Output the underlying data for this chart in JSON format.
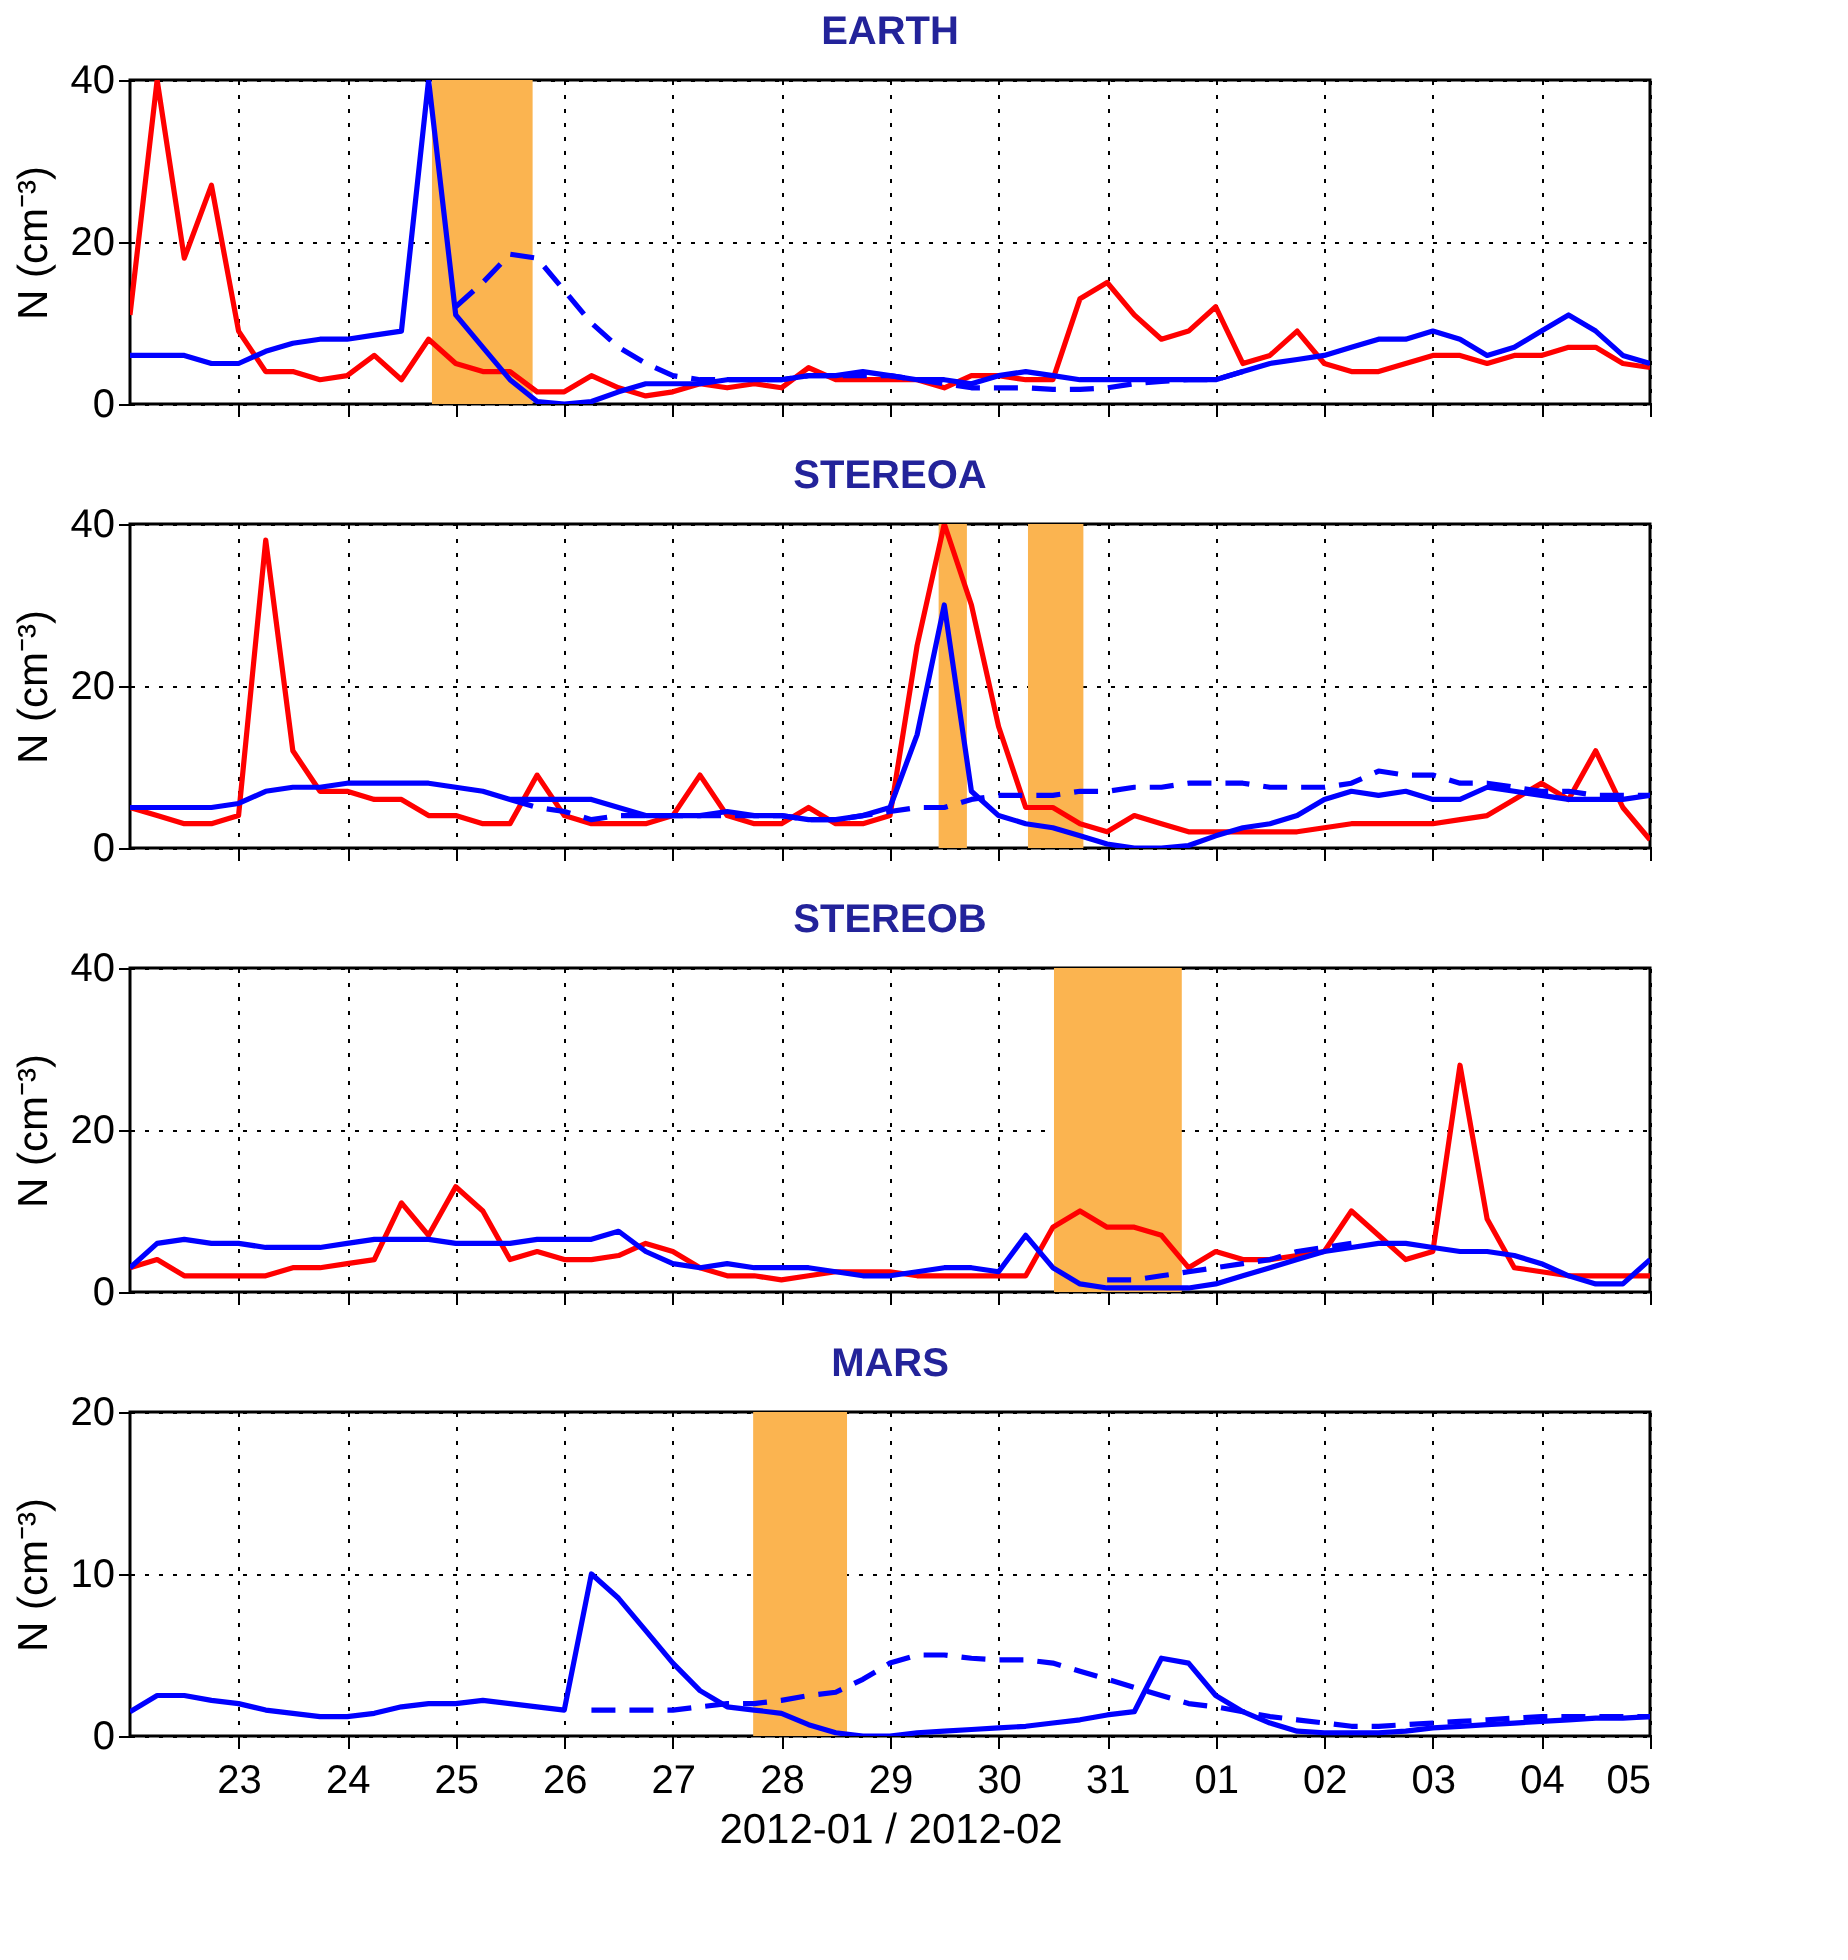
{
  "chart_data": [
    {
      "type": "line",
      "title": "EARTH",
      "ylabel": "N (cm⁻³)",
      "tick_labels": "y",
      "grid": true,
      "xlim": [
        "2012-01-22T00:00",
        "2012-02-05T00:00"
      ],
      "ylim": [
        0,
        40
      ],
      "yticks": [
        0,
        20,
        40
      ],
      "xticks": [
        {
          "value": "2012-01-23T00:00",
          "label": null
        },
        {
          "value": "2012-01-24T00:00",
          "label": null
        },
        {
          "value": "2012-01-25T00:00",
          "label": null
        },
        {
          "value": "2012-01-26T00:00",
          "label": null
        },
        {
          "value": "2012-01-27T00:00",
          "label": null
        },
        {
          "value": "2012-01-28T00:00",
          "label": null
        },
        {
          "value": "2012-01-29T00:00",
          "label": null
        },
        {
          "value": "2012-01-30T00:00",
          "label": null
        },
        {
          "value": "2012-01-31T00:00",
          "label": null
        },
        {
          "value": "2012-02-01T00:00",
          "label": null
        },
        {
          "value": "2012-02-02T00:00",
          "label": null
        },
        {
          "value": "2012-02-03T00:00",
          "label": null
        },
        {
          "value": "2012-02-04T00:00",
          "label": null
        },
        {
          "value": "2012-02-05T00:00",
          "label": null
        }
      ],
      "x": [
        "2012-01-22T00:00",
        "2012-01-22T06:00",
        "2012-01-22T12:00",
        "2012-01-22T18:00",
        "2012-01-23T00:00",
        "2012-01-23T06:00",
        "2012-01-23T12:00",
        "2012-01-23T18:00",
        "2012-01-24T00:00",
        "2012-01-24T06:00",
        "2012-01-24T12:00",
        "2012-01-24T18:00",
        "2012-01-25T00:00",
        "2012-01-25T06:00",
        "2012-01-25T12:00",
        "2012-01-25T18:00",
        "2012-01-26T00:00",
        "2012-01-26T06:00",
        "2012-01-26T12:00",
        "2012-01-26T18:00",
        "2012-01-27T00:00",
        "2012-01-27T06:00",
        "2012-01-27T12:00",
        "2012-01-27T18:00",
        "2012-01-28T00:00",
        "2012-01-28T06:00",
        "2012-01-28T12:00",
        "2012-01-28T18:00",
        "2012-01-29T00:00",
        "2012-01-29T06:00",
        "2012-01-29T12:00",
        "2012-01-29T18:00",
        "2012-01-30T00:00",
        "2012-01-30T06:00",
        "2012-01-30T12:00",
        "2012-01-30T18:00",
        "2012-01-31T00:00",
        "2012-01-31T06:00",
        "2012-01-31T12:00",
        "2012-01-31T18:00",
        "2012-02-01T00:00",
        "2012-02-01T06:00",
        "2012-02-01T12:00",
        "2012-02-01T18:00",
        "2012-02-02T00:00",
        "2012-02-02T06:00",
        "2012-02-02T12:00",
        "2012-02-02T18:00",
        "2012-02-03T00:00",
        "2012-02-03T06:00",
        "2012-02-03T12:00",
        "2012-02-03T18:00",
        "2012-02-04T00:00",
        "2012-02-04T06:00",
        "2012-02-04T12:00",
        "2012-02-04T18:00",
        "2012-02-05T00:00"
      ],
      "bands": [
        {
          "axis": "x",
          "from": "2012-01-24T18:45",
          "to": "2012-01-25T17:00",
          "color": "#fbb450"
        }
      ],
      "series": [
        {
          "color": "#ff0000",
          "line_style": "solid",
          "values": [
            11,
            40,
            18,
            27,
            9,
            4,
            4,
            3,
            3.5,
            6,
            3,
            8,
            5,
            4,
            4,
            1.5,
            1.5,
            3.5,
            2,
            1,
            1.5,
            2.5,
            2,
            2.5,
            2,
            4.5,
            3,
            3,
            3,
            3,
            2,
            3.5,
            3.5,
            3,
            3,
            13,
            15,
            11,
            8,
            9,
            12,
            5,
            6,
            9,
            5,
            4,
            4,
            5,
            6,
            6,
            5,
            6,
            6,
            7,
            7,
            5,
            4.5
          ]
        },
        {
          "color": "#0000ff",
          "line_style": "solid",
          "values": [
            6,
            6,
            6,
            5,
            5,
            6.5,
            7.5,
            8,
            8,
            8.5,
            9,
            40,
            11,
            7,
            3,
            0.3,
            0,
            0.3,
            1.5,
            2.5,
            2.5,
            2.5,
            3,
            3,
            3,
            3.5,
            3.5,
            4,
            3.5,
            3,
            3,
            2.5,
            3.5,
            4,
            3.5,
            3,
            3,
            3,
            3,
            3,
            3,
            4,
            5,
            5.5,
            6,
            7,
            8,
            8,
            9,
            8,
            6,
            7,
            9,
            11,
            9,
            6,
            5
          ]
        },
        {
          "color": "#0000ff",
          "line_style": "dashed",
          "values": [
            null,
            null,
            null,
            null,
            null,
            null,
            null,
            null,
            null,
            null,
            null,
            null,
            12,
            15,
            18.5,
            18,
            14,
            10,
            7,
            5,
            3.5,
            3,
            3,
            3,
            3,
            3.5,
            3.5,
            3.5,
            3.5,
            3,
            2.5,
            2,
            2,
            2,
            1.8,
            1.8,
            2,
            2.5,
            2.8,
            3,
            3,
            4,
            null,
            null,
            null,
            null,
            null,
            null,
            null,
            null,
            null,
            null,
            null,
            null,
            null,
            null,
            null
          ]
        }
      ]
    },
    {
      "type": "line",
      "title": "STEREOA",
      "ylabel": "N (cm⁻³)",
      "tick_labels": "y",
      "grid": true,
      "xlim": [
        "2012-01-22T00:00",
        "2012-02-05T00:00"
      ],
      "ylim": [
        0,
        40
      ],
      "yticks": [
        0,
        20,
        40
      ],
      "xticks": [
        {
          "value": "2012-01-23T00:00",
          "label": null
        },
        {
          "value": "2012-01-24T00:00",
          "label": null
        },
        {
          "value": "2012-01-25T00:00",
          "label": null
        },
        {
          "value": "2012-01-26T00:00",
          "label": null
        },
        {
          "value": "2012-01-27T00:00",
          "label": null
        },
        {
          "value": "2012-01-28T00:00",
          "label": null
        },
        {
          "value": "2012-01-29T00:00",
          "label": null
        },
        {
          "value": "2012-01-30T00:00",
          "label": null
        },
        {
          "value": "2012-01-31T00:00",
          "label": null
        },
        {
          "value": "2012-02-01T00:00",
          "label": null
        },
        {
          "value": "2012-02-02T00:00",
          "label": null
        },
        {
          "value": "2012-02-03T00:00",
          "label": null
        },
        {
          "value": "2012-02-04T00:00",
          "label": null
        },
        {
          "value": "2012-02-05T00:00",
          "label": null
        }
      ],
      "x": [
        "2012-01-22T00:00",
        "2012-01-22T06:00",
        "2012-01-22T12:00",
        "2012-01-22T18:00",
        "2012-01-23T00:00",
        "2012-01-23T06:00",
        "2012-01-23T12:00",
        "2012-01-23T18:00",
        "2012-01-24T00:00",
        "2012-01-24T06:00",
        "2012-01-24T12:00",
        "2012-01-24T18:00",
        "2012-01-25T00:00",
        "2012-01-25T06:00",
        "2012-01-25T12:00",
        "2012-01-25T18:00",
        "2012-01-26T00:00",
        "2012-01-26T06:00",
        "2012-01-26T12:00",
        "2012-01-26T18:00",
        "2012-01-27T00:00",
        "2012-01-27T06:00",
        "2012-01-27T12:00",
        "2012-01-27T18:00",
        "2012-01-28T00:00",
        "2012-01-28T06:00",
        "2012-01-28T12:00",
        "2012-01-28T18:00",
        "2012-01-29T00:00",
        "2012-01-29T06:00",
        "2012-01-29T12:00",
        "2012-01-29T18:00",
        "2012-01-30T00:00",
        "2012-01-30T06:00",
        "2012-01-30T12:00",
        "2012-01-30T18:00",
        "2012-01-31T00:00",
        "2012-01-31T06:00",
        "2012-01-31T12:00",
        "2012-01-31T18:00",
        "2012-02-01T00:00",
        "2012-02-01T06:00",
        "2012-02-01T12:00",
        "2012-02-01T18:00",
        "2012-02-02T00:00",
        "2012-02-02T06:00",
        "2012-02-02T12:00",
        "2012-02-02T18:00",
        "2012-02-03T00:00",
        "2012-02-03T06:00",
        "2012-02-03T12:00",
        "2012-02-03T18:00",
        "2012-02-04T00:00",
        "2012-02-04T06:00",
        "2012-02-04T12:00",
        "2012-02-04T18:00",
        "2012-02-05T00:00"
      ],
      "bands": [
        {
          "axis": "x",
          "from": "2012-01-29T10:45",
          "to": "2012-01-29T17:00",
          "color": "#fbb450"
        },
        {
          "axis": "x",
          "from": "2012-01-30T06:30",
          "to": "2012-01-30T18:45",
          "color": "#fbb450"
        }
      ],
      "series": [
        {
          "color": "#ff0000",
          "line_style": "solid",
          "values": [
            5,
            4,
            3,
            3,
            4,
            38,
            12,
            7,
            7,
            6,
            6,
            4,
            4,
            3,
            3,
            9,
            4,
            3,
            3,
            3,
            4,
            9,
            4,
            3,
            3,
            5,
            3,
            3,
            4,
            25,
            40,
            30,
            15,
            5,
            5,
            3,
            2,
            4,
            3,
            2,
            2,
            2,
            2,
            2,
            2.5,
            3,
            3,
            3,
            3,
            3.5,
            4,
            6,
            8,
            6,
            12,
            5,
            1
          ]
        },
        {
          "color": "#0000ff",
          "line_style": "solid",
          "values": [
            5,
            5,
            5,
            5,
            5.5,
            7,
            7.5,
            7.5,
            8,
            8,
            8,
            8,
            7.5,
            7,
            6,
            6,
            6,
            6,
            5,
            4,
            4,
            4,
            4.5,
            4,
            4,
            3.5,
            3.5,
            4,
            5,
            14,
            30,
            7,
            4,
            3,
            2.5,
            1.5,
            0.5,
            0,
            0,
            0.3,
            1.5,
            2.5,
            3,
            4,
            6,
            7,
            6.5,
            7,
            6,
            6,
            7.5,
            7,
            6.5,
            6,
            6,
            6,
            6.5
          ]
        },
        {
          "color": "#0000ff",
          "line_style": "dashed",
          "values": [
            null,
            null,
            null,
            null,
            null,
            null,
            null,
            null,
            null,
            null,
            null,
            null,
            null,
            null,
            6,
            5,
            4.5,
            3.5,
            4,
            4,
            4,
            4,
            4,
            4,
            4,
            3.5,
            3.5,
            4,
            4.5,
            5,
            5,
            6,
            6.5,
            6.5,
            6.5,
            7,
            7,
            7.5,
            7.5,
            8,
            8,
            8,
            7.5,
            7.5,
            7.5,
            8,
            9.5,
            9,
            9,
            8,
            8,
            7.5,
            7,
            7,
            6.5,
            6.5,
            6.5
          ]
        }
      ]
    },
    {
      "type": "line",
      "title": "STEREOB",
      "ylabel": "N (cm⁻³)",
      "tick_labels": "y",
      "grid": true,
      "xlim": [
        "2012-01-22T00:00",
        "2012-02-05T00:00"
      ],
      "ylim": [
        0,
        40
      ],
      "yticks": [
        0,
        20,
        40
      ],
      "xticks": [
        {
          "value": "2012-01-23T00:00",
          "label": null
        },
        {
          "value": "2012-01-24T00:00",
          "label": null
        },
        {
          "value": "2012-01-25T00:00",
          "label": null
        },
        {
          "value": "2012-01-26T00:00",
          "label": null
        },
        {
          "value": "2012-01-27T00:00",
          "label": null
        },
        {
          "value": "2012-01-28T00:00",
          "label": null
        },
        {
          "value": "2012-01-29T00:00",
          "label": null
        },
        {
          "value": "2012-01-30T00:00",
          "label": null
        },
        {
          "value": "2012-01-31T00:00",
          "label": null
        },
        {
          "value": "2012-02-01T00:00",
          "label": null
        },
        {
          "value": "2012-02-02T00:00",
          "label": null
        },
        {
          "value": "2012-02-03T00:00",
          "label": null
        },
        {
          "value": "2012-02-04T00:00",
          "label": null
        },
        {
          "value": "2012-02-05T00:00",
          "label": null
        }
      ],
      "x": [
        "2012-01-22T00:00",
        "2012-01-22T06:00",
        "2012-01-22T12:00",
        "2012-01-22T18:00",
        "2012-01-23T00:00",
        "2012-01-23T06:00",
        "2012-01-23T12:00",
        "2012-01-23T18:00",
        "2012-01-24T00:00",
        "2012-01-24T06:00",
        "2012-01-24T12:00",
        "2012-01-24T18:00",
        "2012-01-25T00:00",
        "2012-01-25T06:00",
        "2012-01-25T12:00",
        "2012-01-25T18:00",
        "2012-01-26T00:00",
        "2012-01-26T06:00",
        "2012-01-26T12:00",
        "2012-01-26T18:00",
        "2012-01-27T00:00",
        "2012-01-27T06:00",
        "2012-01-27T12:00",
        "2012-01-27T18:00",
        "2012-01-28T00:00",
        "2012-01-28T06:00",
        "2012-01-28T12:00",
        "2012-01-28T18:00",
        "2012-01-29T00:00",
        "2012-01-29T06:00",
        "2012-01-29T12:00",
        "2012-01-29T18:00",
        "2012-01-30T00:00",
        "2012-01-30T06:00",
        "2012-01-30T12:00",
        "2012-01-30T18:00",
        "2012-01-31T00:00",
        "2012-01-31T06:00",
        "2012-01-31T12:00",
        "2012-01-31T18:00",
        "2012-02-01T00:00",
        "2012-02-01T06:00",
        "2012-02-01T12:00",
        "2012-02-01T18:00",
        "2012-02-02T00:00",
        "2012-02-02T06:00",
        "2012-02-02T12:00",
        "2012-02-02T18:00",
        "2012-02-03T00:00",
        "2012-02-03T06:00",
        "2012-02-03T12:00",
        "2012-02-03T18:00",
        "2012-02-04T00:00",
        "2012-02-04T06:00",
        "2012-02-04T12:00",
        "2012-02-04T18:00",
        "2012-02-05T00:00"
      ],
      "bands": [
        {
          "axis": "x",
          "from": "2012-01-30T12:15",
          "to": "2012-01-31T16:30",
          "color": "#fbb450"
        }
      ],
      "series": [
        {
          "color": "#ff0000",
          "line_style": "solid",
          "values": [
            3,
            4,
            2,
            2,
            2,
            2,
            3,
            3,
            3.5,
            4,
            11,
            7,
            13,
            10,
            4,
            5,
            4,
            4,
            4.5,
            6,
            5,
            3,
            2,
            2,
            1.5,
            2,
            2.5,
            2.5,
            2.5,
            2,
            2,
            2,
            2,
            2,
            8,
            10,
            8,
            8,
            7,
            3,
            5,
            4,
            4,
            4.5,
            5,
            10,
            7,
            4,
            5,
            28,
            9,
            3,
            2.5,
            2,
            2,
            2,
            2
          ]
        },
        {
          "color": "#0000ff",
          "line_style": "solid",
          "values": [
            3,
            6,
            6.5,
            6,
            6,
            5.5,
            5.5,
            5.5,
            6,
            6.5,
            6.5,
            6.5,
            6,
            6,
            6,
            6.5,
            6.5,
            6.5,
            7.5,
            5,
            3.5,
            3,
            3.5,
            3,
            3,
            3,
            2.5,
            2,
            2,
            2.5,
            3,
            3,
            2.5,
            7,
            3,
            1,
            0.5,
            0.5,
            0.5,
            0.5,
            1,
            2,
            3,
            4,
            5,
            5.5,
            6,
            6,
            5.5,
            5,
            5,
            4.5,
            3.5,
            2,
            1,
            1,
            4
          ]
        },
        {
          "color": "#0000ff",
          "line_style": "dashed",
          "values": [
            null,
            null,
            null,
            null,
            null,
            null,
            null,
            null,
            null,
            null,
            null,
            null,
            null,
            null,
            null,
            null,
            null,
            null,
            null,
            null,
            null,
            null,
            null,
            null,
            null,
            null,
            null,
            null,
            null,
            null,
            null,
            null,
            null,
            null,
            null,
            null,
            1.5,
            1.5,
            2,
            2.5,
            3,
            3.5,
            4,
            5,
            5.5,
            6,
            null,
            null,
            null,
            null,
            null,
            null,
            null,
            null,
            null,
            null,
            null
          ]
        }
      ]
    },
    {
      "type": "line",
      "title": "MARS",
      "ylabel": "N (cm⁻³)",
      "xlabel": "2012-01 / 2012-02",
      "grid": true,
      "xlim": [
        "2012-01-22T00:00",
        "2012-02-05T00:00"
      ],
      "ylim": [
        0,
        20
      ],
      "yticks": [
        0,
        10,
        20
      ],
      "xticks": [
        {
          "value": "2012-01-23T00:00",
          "label": "23"
        },
        {
          "value": "2012-01-24T00:00",
          "label": "24"
        },
        {
          "value": "2012-01-25T00:00",
          "label": "25"
        },
        {
          "value": "2012-01-26T00:00",
          "label": "26"
        },
        {
          "value": "2012-01-27T00:00",
          "label": "27"
        },
        {
          "value": "2012-01-28T00:00",
          "label": "28"
        },
        {
          "value": "2012-01-29T00:00",
          "label": "29"
        },
        {
          "value": "2012-01-30T00:00",
          "label": "30"
        },
        {
          "value": "2012-01-31T00:00",
          "label": "31"
        },
        {
          "value": "2012-02-01T00:00",
          "label": "01"
        },
        {
          "value": "2012-02-02T00:00",
          "label": "02"
        },
        {
          "value": "2012-02-03T00:00",
          "label": "03"
        },
        {
          "value": "2012-02-04T00:00",
          "label": "04"
        },
        {
          "value": "2012-02-05T00:00",
          "label": "05"
        }
      ],
      "x": [
        "2012-01-22T00:00",
        "2012-01-22T06:00",
        "2012-01-22T12:00",
        "2012-01-22T18:00",
        "2012-01-23T00:00",
        "2012-01-23T06:00",
        "2012-01-23T12:00",
        "2012-01-23T18:00",
        "2012-01-24T00:00",
        "2012-01-24T06:00",
        "2012-01-24T12:00",
        "2012-01-24T18:00",
        "2012-01-25T00:00",
        "2012-01-25T06:00",
        "2012-01-25T12:00",
        "2012-01-25T18:00",
        "2012-01-26T00:00",
        "2012-01-26T06:00",
        "2012-01-26T12:00",
        "2012-01-26T18:00",
        "2012-01-27T00:00",
        "2012-01-27T06:00",
        "2012-01-27T12:00",
        "2012-01-27T18:00",
        "2012-01-28T00:00",
        "2012-01-28T06:00",
        "2012-01-28T12:00",
        "2012-01-28T18:00",
        "2012-01-29T00:00",
        "2012-01-29T06:00",
        "2012-01-29T12:00",
        "2012-01-29T18:00",
        "2012-01-30T00:00",
        "2012-01-30T06:00",
        "2012-01-30T12:00",
        "2012-01-30T18:00",
        "2012-01-31T00:00",
        "2012-01-31T06:00",
        "2012-01-31T12:00",
        "2012-01-31T18:00",
        "2012-02-01T00:00",
        "2012-02-01T06:00",
        "2012-02-01T12:00",
        "2012-02-01T18:00",
        "2012-02-02T00:00",
        "2012-02-02T06:00",
        "2012-02-02T12:00",
        "2012-02-02T18:00",
        "2012-02-03T00:00",
        "2012-02-03T06:00",
        "2012-02-03T12:00",
        "2012-02-03T18:00",
        "2012-02-04T00:00",
        "2012-02-04T06:00",
        "2012-02-04T12:00",
        "2012-02-04T18:00",
        "2012-02-05T00:00"
      ],
      "bands": [
        {
          "axis": "x",
          "from": "2012-01-27T17:45",
          "to": "2012-01-28T14:30",
          "color": "#fbb450"
        }
      ],
      "series": [
        {
          "color": "#0000ff",
          "line_style": "solid",
          "values": [
            1.5,
            2.5,
            2.5,
            2.2,
            2,
            1.6,
            1.4,
            1.2,
            1.2,
            1.4,
            1.8,
            2,
            2,
            2.2,
            2,
            1.8,
            1.6,
            10,
            8.5,
            6.5,
            4.5,
            2.8,
            1.8,
            1.6,
            1.4,
            0.7,
            0.2,
            0,
            0,
            0.2,
            0.3,
            0.4,
            0.5,
            0.6,
            0.8,
            1,
            1.3,
            1.5,
            4.8,
            4.5,
            2.5,
            1.5,
            0.8,
            0.3,
            0.2,
            0.2,
            0.2,
            0.3,
            0.5,
            0.6,
            0.7,
            0.8,
            0.9,
            1,
            1.1,
            1.1,
            1.2
          ]
        },
        {
          "color": "#0000ff",
          "line_style": "dashed",
          "values": [
            null,
            null,
            null,
            null,
            null,
            null,
            null,
            null,
            null,
            null,
            null,
            null,
            null,
            null,
            null,
            null,
            null,
            1.6,
            1.6,
            1.6,
            1.6,
            1.8,
            2,
            2,
            2.2,
            2.5,
            2.7,
            3.5,
            4.5,
            5,
            5,
            4.8,
            4.7,
            4.7,
            4.5,
            4,
            3.5,
            3,
            2.5,
            2,
            1.8,
            1.5,
            1.2,
            1,
            0.8,
            0.6,
            0.6,
            0.7,
            0.8,
            0.9,
            1,
            1.1,
            1.2,
            1.2,
            1.2,
            1.2,
            1.2
          ]
        }
      ]
    }
  ]
}
